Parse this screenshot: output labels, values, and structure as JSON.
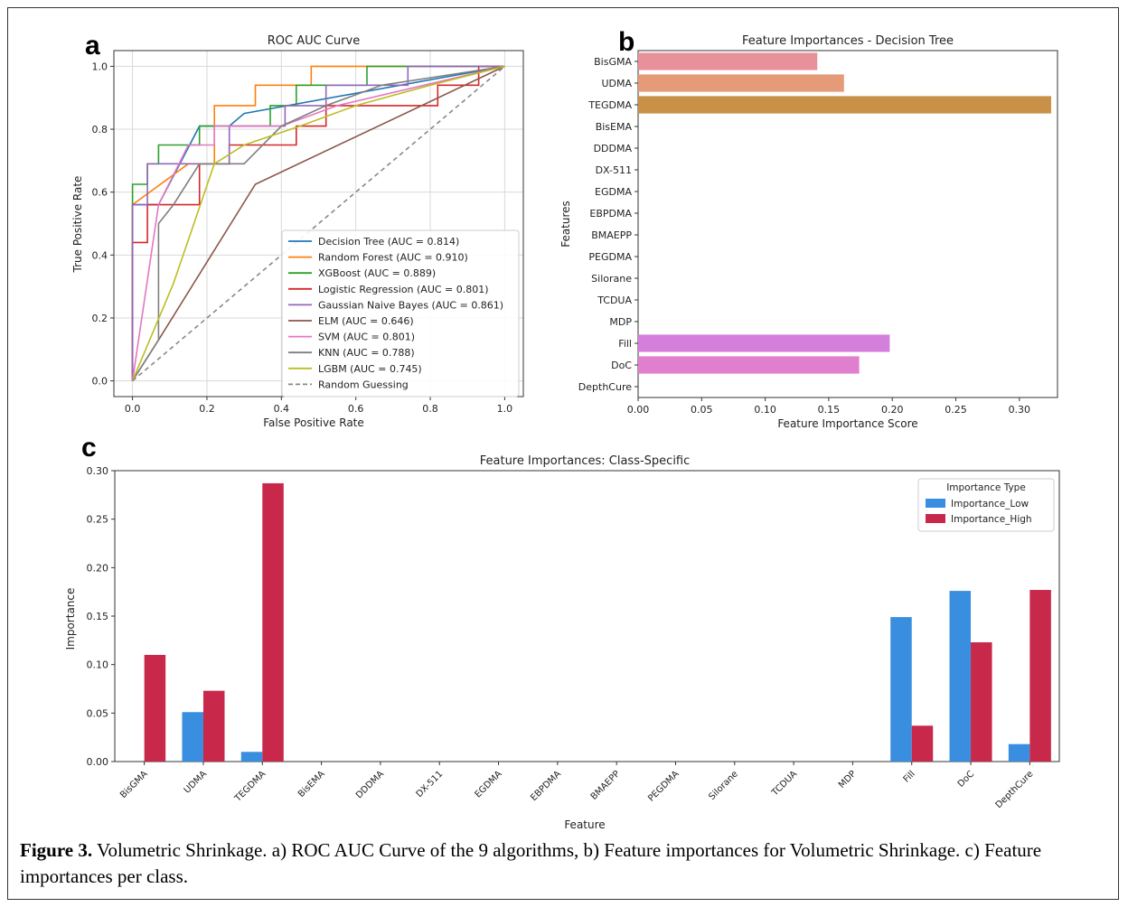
{
  "colors": {
    "decision_tree": "#1f77b4",
    "random_forest": "#ff7f0e",
    "xgboost": "#2ca02c",
    "logistic_regression": "#d62728",
    "gaussian_nb": "#9467bd",
    "elm": "#8c564b",
    "svm": "#e377c2",
    "knn": "#7f7f7f",
    "lgbm": "#bcbd22",
    "random_guess": "#888888",
    "importance_low": "#3a8ee0",
    "importance_high": "#c8284a"
  },
  "panels": {
    "a": "a",
    "b": "b",
    "c": "c"
  },
  "chart_data": [
    {
      "type": "line",
      "title": "ROC AUC Curve",
      "xlabel": "False Positive Rate",
      "ylabel": "True Positive Rate",
      "xlim": [
        -0.05,
        1.05
      ],
      "ylim": [
        -0.05,
        1.05
      ],
      "xticks": [
        "0.0",
        "0.2",
        "0.4",
        "0.6",
        "0.8",
        "1.0"
      ],
      "yticks": [
        "0.0",
        "0.2",
        "0.4",
        "0.6",
        "0.8",
        "1.0"
      ],
      "grid": true,
      "legend_position": "lower-right",
      "series": [
        {
          "name": "Decision Tree (AUC = 0.814)",
          "color_key": "decision_tree",
          "points": [
            [
              0,
              0
            ],
            [
              0,
              0.56
            ],
            [
              0.07,
              0.56
            ],
            [
              0.18,
              0.81
            ],
            [
              0.26,
              0.81
            ],
            [
              0.3,
              0.85
            ],
            [
              1,
              1
            ]
          ]
        },
        {
          "name": "Random Forest (AUC = 0.910)",
          "color_key": "random_forest",
          "points": [
            [
              0,
              0
            ],
            [
              0,
              0.56
            ],
            [
              0.15,
              0.69
            ],
            [
              0.22,
              0.69
            ],
            [
              0.22,
              0.875
            ],
            [
              0.33,
              0.875
            ],
            [
              0.33,
              0.94
            ],
            [
              0.48,
              0.94
            ],
            [
              0.48,
              1.0
            ],
            [
              1,
              1
            ]
          ]
        },
        {
          "name": "XGBoost (AUC = 0.889)",
          "color_key": "xgboost",
          "points": [
            [
              0,
              0
            ],
            [
              0,
              0.625
            ],
            [
              0.04,
              0.625
            ],
            [
              0.04,
              0.69
            ],
            [
              0.07,
              0.69
            ],
            [
              0.07,
              0.75
            ],
            [
              0.18,
              0.75
            ],
            [
              0.18,
              0.81
            ],
            [
              0.37,
              0.81
            ],
            [
              0.37,
              0.875
            ],
            [
              0.44,
              0.875
            ],
            [
              0.44,
              0.94
            ],
            [
              0.63,
              0.94
            ],
            [
              0.63,
              1.0
            ],
            [
              1,
              1
            ]
          ]
        },
        {
          "name": "Logistic Regression (AUC = 0.801)",
          "color_key": "logistic_regression",
          "points": [
            [
              0,
              0
            ],
            [
              0,
              0.44
            ],
            [
              0.04,
              0.44
            ],
            [
              0.04,
              0.56
            ],
            [
              0.18,
              0.56
            ],
            [
              0.18,
              0.69
            ],
            [
              0.26,
              0.69
            ],
            [
              0.26,
              0.75
            ],
            [
              0.44,
              0.75
            ],
            [
              0.44,
              0.81
            ],
            [
              0.52,
              0.81
            ],
            [
              0.52,
              0.875
            ],
            [
              0.82,
              0.875
            ],
            [
              0.82,
              0.94
            ],
            [
              0.93,
              0.94
            ],
            [
              0.93,
              1.0
            ],
            [
              1,
              1
            ]
          ]
        },
        {
          "name": "Gaussian Naive Bayes (AUC = 0.861)",
          "color_key": "gaussian_nb",
          "points": [
            [
              0,
              0
            ],
            [
              0,
              0.56
            ],
            [
              0.04,
              0.56
            ],
            [
              0.04,
              0.69
            ],
            [
              0.26,
              0.69
            ],
            [
              0.26,
              0.81
            ],
            [
              0.41,
              0.81
            ],
            [
              0.41,
              0.875
            ],
            [
              0.52,
              0.875
            ],
            [
              0.52,
              0.94
            ],
            [
              0.74,
              0.94
            ],
            [
              0.74,
              1.0
            ],
            [
              1,
              1
            ]
          ]
        },
        {
          "name": "ELM (AUC = 0.646)",
          "color_key": "elm",
          "points": [
            [
              0,
              0
            ],
            [
              0.07,
              0.13
            ],
            [
              0.33,
              0.625
            ],
            [
              1,
              1
            ]
          ]
        },
        {
          "name": "SVM (AUC = 0.801)",
          "color_key": "svm",
          "points": [
            [
              0,
              0
            ],
            [
              0.07,
              0.56
            ],
            [
              0.15,
              0.75
            ],
            [
              0.22,
              0.75
            ],
            [
              0.22,
              0.81
            ],
            [
              0.4,
              0.81
            ],
            [
              0.55,
              0.875
            ],
            [
              1,
              1
            ]
          ]
        },
        {
          "name": "KNN (AUC = 0.788)",
          "color_key": "knn",
          "points": [
            [
              0,
              0
            ],
            [
              0.07,
              0.13
            ],
            [
              0.07,
              0.5
            ],
            [
              0.11,
              0.56
            ],
            [
              0.18,
              0.69
            ],
            [
              0.3,
              0.69
            ],
            [
              0.4,
              0.81
            ],
            [
              0.52,
              0.875
            ],
            [
              0.67,
              0.94
            ],
            [
              1,
              1
            ]
          ]
        },
        {
          "name": "LGBM (AUC = 0.745)",
          "color_key": "lgbm",
          "points": [
            [
              0,
              0
            ],
            [
              0.11,
              0.31
            ],
            [
              0.22,
              0.69
            ],
            [
              0.3,
              0.75
            ],
            [
              0.45,
              0.81
            ],
            [
              0.6,
              0.875
            ],
            [
              0.8,
              0.94
            ],
            [
              1,
              1
            ]
          ]
        },
        {
          "name": "Random Guessing",
          "color_key": "random_guess",
          "dashed": true,
          "points": [
            [
              0,
              0
            ],
            [
              1,
              1
            ]
          ]
        }
      ]
    },
    {
      "type": "bar",
      "orientation": "horizontal",
      "title": "Feature Importances - Decision Tree",
      "xlabel": "Feature Importance Score",
      "ylabel": "Features",
      "xlim": [
        0,
        0.33
      ],
      "xticks": [
        "0.00",
        "0.05",
        "0.10",
        "0.15",
        "0.20",
        "0.25",
        "0.30"
      ],
      "categories": [
        "BisGMA",
        "UDMA",
        "TEGDMA",
        "BisEMA",
        "DDDMA",
        "DX-511",
        "EGDMA",
        "EBPDMA",
        "BMAEPP",
        "PEGDMA",
        "Silorane",
        "TCDUA",
        "MDP",
        "Fill",
        "DoC",
        "DepthCure"
      ],
      "values": [
        0.141,
        0.162,
        0.325,
        0,
        0,
        0,
        0,
        0,
        0,
        0,
        0,
        0,
        0,
        0.198,
        0.174,
        0
      ],
      "bar_colors": [
        "#e8919a",
        "#e59a78",
        "#c99048",
        "#cccccc",
        "#cccccc",
        "#cccccc",
        "#cccccc",
        "#cccccc",
        "#cccccc",
        "#cccccc",
        "#cccccc",
        "#cccccc",
        "#cccccc",
        "#d57fdc",
        "#e17fcf",
        "#cccccc"
      ]
    },
    {
      "type": "bar",
      "title": "Feature Importances: Class-Specific",
      "xlabel": "Feature",
      "ylabel": "Importance",
      "ylim": [
        0,
        0.3
      ],
      "yticks": [
        "0.00",
        "0.05",
        "0.10",
        "0.15",
        "0.20",
        "0.25",
        "0.30"
      ],
      "legend_title": "Importance Type",
      "legend_position": "top-right",
      "categories": [
        "BisGMA",
        "UDMA",
        "TEGDMA",
        "BisEMA",
        "DDDMA",
        "DX-511",
        "EGDMA",
        "EBPDMA",
        "BMAEPP",
        "PEGDMA",
        "Silorane",
        "TCDUA",
        "MDP",
        "Fill",
        "DoC",
        "DepthCure"
      ],
      "series": [
        {
          "name": "Importance_Low",
          "color_key": "importance_low",
          "values": [
            0,
            0.051,
            0.01,
            0,
            0,
            0,
            0,
            0,
            0,
            0,
            0,
            0,
            0,
            0.149,
            0.176,
            0.018
          ]
        },
        {
          "name": "Importance_High",
          "color_key": "importance_high",
          "values": [
            0.11,
            0.073,
            0.287,
            0,
            0,
            0,
            0,
            0,
            0,
            0,
            0,
            0,
            0,
            0.037,
            0.123,
            0.177
          ]
        }
      ]
    }
  ],
  "caption": {
    "label": "Figure 3.",
    "text": " Volumetric Shrinkage. a) ROC AUC Curve of the 9 algorithms, b) Feature importances for Volumetric Shrinkage. c) Feature importances per class."
  }
}
